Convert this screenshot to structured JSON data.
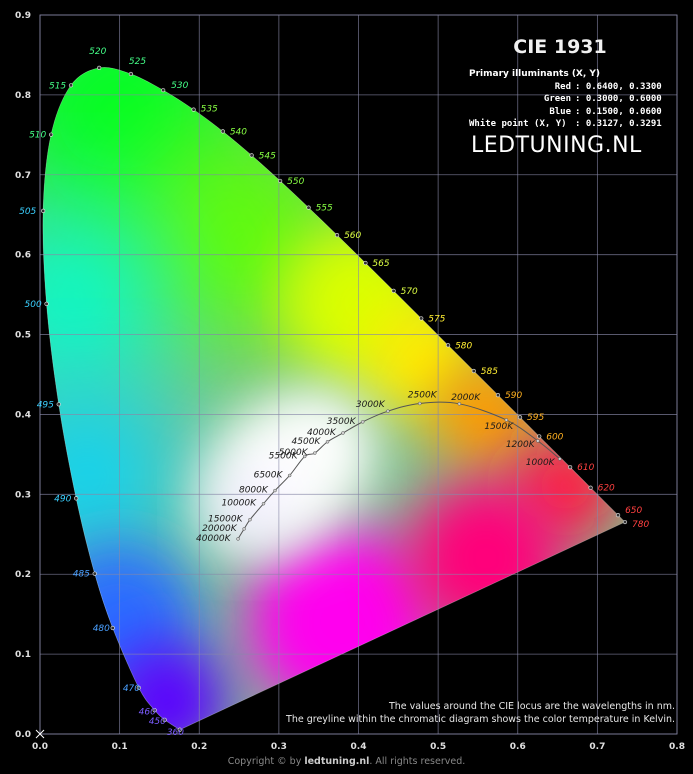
{
  "chart_data": {
    "type": "scatter",
    "title": "CIE 1931",
    "xlim": [
      0,
      0.8
    ],
    "ylim": [
      0,
      0.9
    ],
    "x_ticks": [
      "0.0",
      "0.1",
      "0.2",
      "0.3",
      "0.4",
      "0.5",
      "0.6",
      "0.7",
      "0.8"
    ],
    "y_ticks": [
      "0.0",
      "0.1",
      "0.2",
      "0.3",
      "0.4",
      "0.5",
      "0.6",
      "0.7",
      "0.8",
      "0.9"
    ],
    "grid": true,
    "spectral_locus": [
      {
        "nm": "360",
        "x": 0.1756,
        "y": 0.0053
      },
      {
        "nm": "450",
        "x": 0.1566,
        "y": 0.0177
      },
      {
        "nm": "460",
        "x": 0.144,
        "y": 0.0297
      },
      {
        "nm": "470",
        "x": 0.1241,
        "y": 0.0578
      },
      {
        "nm": "480",
        "x": 0.0913,
        "y": 0.1327
      },
      {
        "nm": "485",
        "x": 0.0687,
        "y": 0.2007
      },
      {
        "nm": "490",
        "x": 0.0454,
        "y": 0.295
      },
      {
        "nm": "495",
        "x": 0.0235,
        "y": 0.4127
      },
      {
        "nm": "500",
        "x": 0.0082,
        "y": 0.5384
      },
      {
        "nm": "505",
        "x": 0.0039,
        "y": 0.6548
      },
      {
        "nm": "510",
        "x": 0.0139,
        "y": 0.7502
      },
      {
        "nm": "515",
        "x": 0.0389,
        "y": 0.812
      },
      {
        "nm": "520",
        "x": 0.0743,
        "y": 0.8338
      },
      {
        "nm": "525",
        "x": 0.1142,
        "y": 0.8262
      },
      {
        "nm": "530",
        "x": 0.1547,
        "y": 0.8059
      },
      {
        "nm": "535",
        "x": 0.1929,
        "y": 0.7816
      },
      {
        "nm": "540",
        "x": 0.2296,
        "y": 0.7543
      },
      {
        "nm": "545",
        "x": 0.2658,
        "y": 0.7243
      },
      {
        "nm": "550",
        "x": 0.3016,
        "y": 0.6923
      },
      {
        "nm": "555",
        "x": 0.3373,
        "y": 0.6589
      },
      {
        "nm": "560",
        "x": 0.3731,
        "y": 0.6245
      },
      {
        "nm": "565",
        "x": 0.4087,
        "y": 0.5896
      },
      {
        "nm": "570",
        "x": 0.4441,
        "y": 0.5547
      },
      {
        "nm": "575",
        "x": 0.4788,
        "y": 0.5202
      },
      {
        "nm": "580",
        "x": 0.5125,
        "y": 0.4866
      },
      {
        "nm": "585",
        "x": 0.5448,
        "y": 0.4544
      },
      {
        "nm": "590",
        "x": 0.5752,
        "y": 0.4242
      },
      {
        "nm": "595",
        "x": 0.6029,
        "y": 0.3965
      },
      {
        "nm": "600",
        "x": 0.627,
        "y": 0.3725
      },
      {
        "nm": "610",
        "x": 0.6658,
        "y": 0.334
      },
      {
        "nm": "620",
        "x": 0.6915,
        "y": 0.3083
      },
      {
        "nm": "650",
        "x": 0.726,
        "y": 0.274
      },
      {
        "nm": "780",
        "x": 0.7347,
        "y": 0.2653
      }
    ],
    "planckian_locus": [
      {
        "label": "40000K",
        "x": 0.2487,
        "y": 0.2442
      },
      {
        "label": "20000K",
        "x": 0.2564,
        "y": 0.2568
      },
      {
        "label": "15000K",
        "x": 0.2637,
        "y": 0.2683
      },
      {
        "label": "10000K",
        "x": 0.2807,
        "y": 0.2883
      },
      {
        "label": "8000K",
        "x": 0.2951,
        "y": 0.3047
      },
      {
        "label": "6500K",
        "x": 0.3135,
        "y": 0.3236
      },
      {
        "label": "5500K",
        "x": 0.3324,
        "y": 0.3474
      },
      {
        "label": "5000K",
        "x": 0.3451,
        "y": 0.3516
      },
      {
        "label": "4500K",
        "x": 0.3611,
        "y": 0.3658
      },
      {
        "label": "4000K",
        "x": 0.3805,
        "y": 0.3768
      },
      {
        "label": "3500K",
        "x": 0.4053,
        "y": 0.3907
      },
      {
        "label": "3000K",
        "x": 0.4369,
        "y": 0.4041
      },
      {
        "label": "2500K",
        "x": 0.477,
        "y": 0.4137
      },
      {
        "label": "2000K",
        "x": 0.5266,
        "y": 0.4133
      },
      {
        "label": "1500K",
        "x": 0.5857,
        "y": 0.3931
      },
      {
        "label": "1200K",
        "x": 0.6252,
        "y": 0.3669
      },
      {
        "label": "1000K",
        "x": 0.6528,
        "y": 0.3444
      }
    ],
    "primaries": {
      "heading": "Primary illuminants (X, Y)",
      "rows": [
        {
          "name": "Red",
          "value": ": 0.6400, 0.3300"
        },
        {
          "name": "Green",
          "value": ": 0.3000, 0.6000"
        },
        {
          "name": "Blue",
          "value": ": 0.1500, 0.0600"
        },
        {
          "name": "White point (X, Y)",
          "value": ": 0.3127, 0.3291"
        }
      ]
    }
  },
  "branding": {
    "logo_left": "LEDTUNING",
    "logo_dot": ".",
    "logo_right": "NL"
  },
  "notes": {
    "line1": "The values around the CIE locus are the wavelengths in nm.",
    "line2": "The greyline within the chromatic diagram shows the color temperature in Kelvin."
  },
  "footer": {
    "prefix": "Copyright © by ",
    "site": "ledtuning.nl",
    "suffix": ". All rights reserved."
  }
}
